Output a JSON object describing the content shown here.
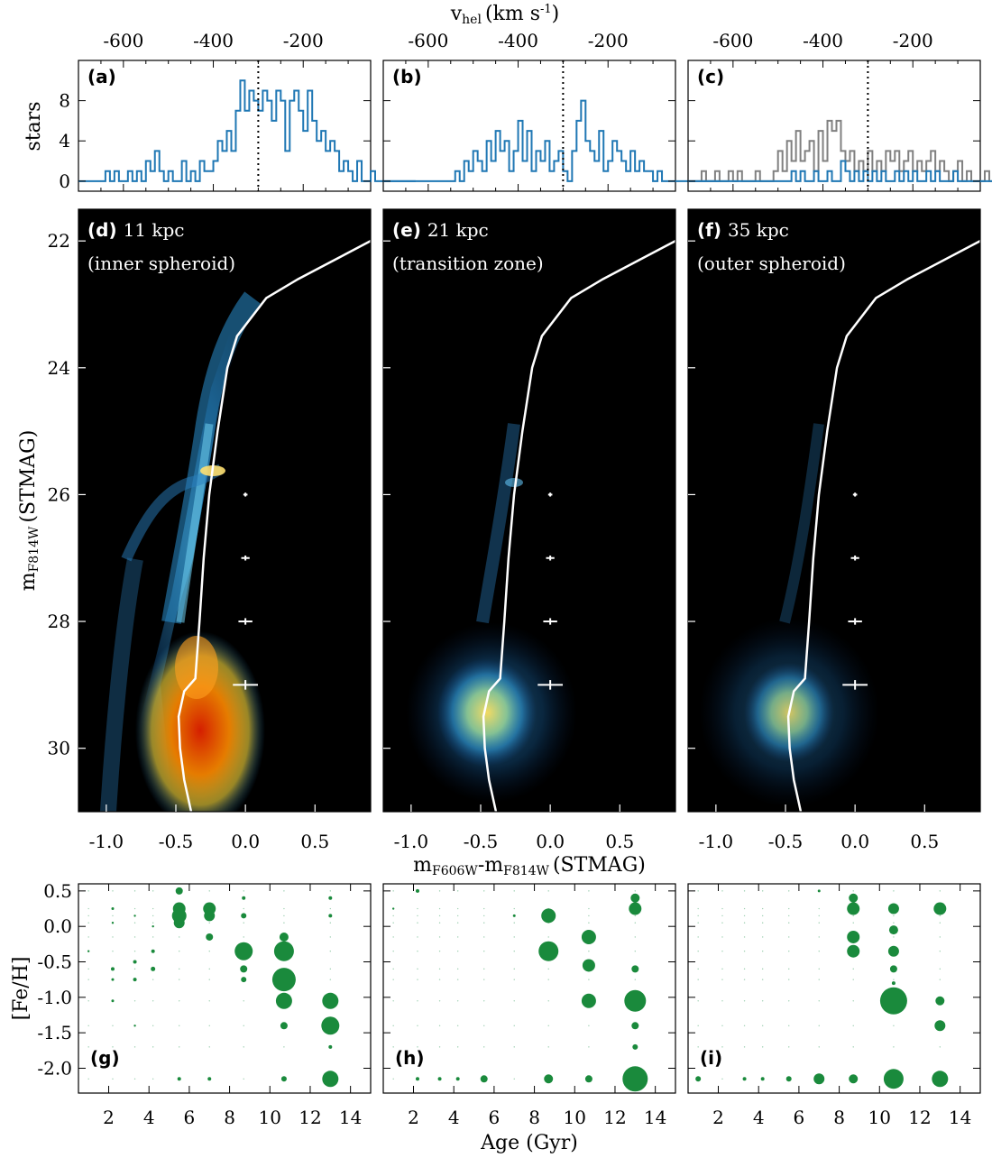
{
  "chart_data": [
    {
      "panel": "a",
      "type": "histogram",
      "label": "(a)",
      "x_axis_label": "v",
      "x_axis_label_sub": "hel",
      "x_axis_label_unit": "(km s",
      "x_axis_label_sup": "-1",
      "x_axis_label_close": ")",
      "y_axis_label": "stars",
      "xlim": [
        -700,
        -50
      ],
      "ylim": [
        -1,
        12
      ],
      "xticks": [
        "-600",
        "-400",
        "-200"
      ],
      "yticks": [
        "0",
        "4",
        "8"
      ],
      "dotted_line_x": -300,
      "bin_start": -700,
      "bin_width": 10,
      "series": [
        {
          "color": "#1f77b4",
          "counts": [
            0,
            0,
            0,
            0,
            0,
            0,
            1,
            0,
            1,
            0,
            0,
            1,
            0,
            1,
            0,
            2,
            1,
            3,
            1,
            0,
            1,
            0,
            0,
            2,
            0,
            1,
            0,
            2,
            1,
            1,
            2,
            4,
            3,
            5,
            3,
            7,
            10,
            7,
            9,
            8,
            7,
            9,
            8,
            6,
            9,
            8,
            3,
            8,
            9,
            7,
            5,
            9,
            6,
            4,
            5,
            3,
            4,
            3,
            1,
            2,
            1,
            0,
            2,
            0,
            0,
            1,
            0,
            0,
            0,
            0,
            0,
            0,
            0,
            0,
            0
          ]
        }
      ]
    },
    {
      "panel": "b",
      "type": "histogram",
      "label": "(b)",
      "xlim": [
        -700,
        -50
      ],
      "ylim": [
        -1,
        12
      ],
      "xticks": [
        "-600",
        "-400",
        "-200"
      ],
      "dotted_line_x": -300,
      "bin_start": -700,
      "bin_width": 10,
      "series": [
        {
          "color": "#1f77b4",
          "counts": [
            0,
            0,
            0,
            0,
            0,
            0,
            0,
            0,
            0,
            0,
            0,
            0,
            0,
            0,
            0,
            0,
            1,
            0,
            2,
            1,
            3,
            2,
            1,
            4,
            2,
            5,
            3,
            4,
            1,
            3,
            6,
            2,
            5,
            1,
            3,
            2,
            4,
            1,
            2,
            3,
            1,
            0,
            3,
            6,
            8,
            4,
            3,
            2,
            5,
            1,
            2,
            4,
            3,
            2,
            1,
            3,
            1,
            2,
            1,
            1,
            0,
            1,
            0,
            0,
            0,
            0,
            0,
            0,
            0,
            0,
            0,
            0,
            0,
            0,
            0
          ]
        }
      ]
    },
    {
      "panel": "c",
      "type": "histogram",
      "label": "(c)",
      "xlim": [
        -700,
        -50
      ],
      "ylim": [
        -1,
        12
      ],
      "xticks": [
        "-600",
        "-400",
        "-200"
      ],
      "dotted_line_x": -300,
      "bin_start": -700,
      "bin_width": 10,
      "series": [
        {
          "color": "#808080",
          "counts": [
            0,
            0,
            0,
            1,
            0,
            0,
            1,
            0,
            0,
            1,
            0,
            1,
            0,
            0,
            0,
            1,
            0,
            0,
            0,
            1,
            3,
            1,
            4,
            2,
            5,
            2,
            3,
            4,
            1,
            5,
            2,
            6,
            5,
            6,
            3,
            2,
            3,
            1,
            2,
            1,
            3,
            1,
            2,
            1,
            3,
            2,
            3,
            1,
            2,
            3,
            1,
            2,
            1,
            2,
            3,
            1,
            2,
            1,
            0,
            1,
            2,
            0,
            1,
            0,
            0,
            0,
            1,
            0,
            0,
            0,
            0,
            0,
            1,
            0,
            0
          ]
        },
        {
          "color": "#1f77b4",
          "counts": [
            0,
            0,
            0,
            0,
            0,
            0,
            0,
            0,
            0,
            0,
            0,
            0,
            0,
            0,
            0,
            0,
            0,
            0,
            0,
            0,
            0,
            0,
            0,
            1,
            0,
            1,
            0,
            0,
            1,
            0,
            0,
            1,
            0,
            0,
            2,
            1,
            0,
            1,
            0,
            1,
            0,
            1,
            0,
            1,
            0,
            0,
            1,
            0,
            1,
            0,
            1,
            0,
            0,
            1,
            0,
            1,
            0,
            0,
            0,
            1,
            0,
            0,
            0,
            0,
            0,
            0,
            0,
            0,
            0,
            0,
            0,
            0,
            0,
            0,
            0
          ]
        }
      ]
    },
    {
      "panel": "d",
      "type": "hess_diagram",
      "label": "(d)",
      "annotation": "11 kpc",
      "annotation2": "(inner spheroid)",
      "xlim": [
        -1.2,
        0.9
      ],
      "ylim": [
        31,
        21.5
      ],
      "xticks": [
        "-1.0",
        "-0.5",
        "0.0",
        "0.5"
      ],
      "yticks": [
        "22",
        "24",
        "26",
        "28",
        "30"
      ],
      "y_axis_label": "m",
      "y_axis_label_sub": "F814W",
      "y_axis_label_unit": "(STMAG)",
      "density_level": 1.0
    },
    {
      "panel": "e",
      "type": "hess_diagram",
      "label": "(e)",
      "annotation": "21 kpc",
      "annotation2": "(transition zone)",
      "xlim": [
        -1.2,
        0.9
      ],
      "ylim": [
        31,
        21.5
      ],
      "xticks": [
        "-1.0",
        "-0.5",
        "0.0",
        "0.5"
      ],
      "x_axis_label": "m",
      "x_axis_label_sub1": "F606W",
      "x_axis_label_mid": "-m",
      "x_axis_label_sub2": "F814W",
      "x_axis_label_unit": "(STMAG)",
      "density_level": 0.55
    },
    {
      "panel": "f",
      "type": "hess_diagram",
      "label": "(f)",
      "annotation": "35 kpc",
      "annotation2": "(outer spheroid)",
      "xlim": [
        -1.2,
        0.9
      ],
      "ylim": [
        31,
        21.5
      ],
      "xticks": [
        "-1.0",
        "-0.5",
        "0.0",
        "0.5"
      ],
      "density_level": 0.4
    },
    {
      "panel": "g",
      "type": "bubble",
      "label": "(g)",
      "y_axis_label": "[Fe/H]",
      "xlim": [
        0.5,
        15
      ],
      "ylim": [
        -2.35,
        0.6
      ],
      "xticks": [
        "2",
        "4",
        "6",
        "8",
        "10",
        "12",
        "14"
      ],
      "yticks": [
        "0.5",
        "0.0",
        "-0.5",
        "-1.0",
        "-1.5",
        "-2.0"
      ],
      "points": [
        [
          5.5,
          0.5,
          4
        ],
        [
          5.5,
          0.25,
          7
        ],
        [
          5.5,
          0.15,
          8
        ],
        [
          5.5,
          0.05,
          6
        ],
        [
          7,
          0.25,
          7
        ],
        [
          7,
          0.15,
          6
        ],
        [
          7,
          -0.15,
          4
        ],
        [
          8.7,
          -0.35,
          10
        ],
        [
          8.7,
          -0.6,
          4
        ],
        [
          8.7,
          -0.75,
          3
        ],
        [
          8.7,
          0.15,
          3
        ],
        [
          8.7,
          0.4,
          2
        ],
        [
          10.7,
          -0.15,
          5
        ],
        [
          10.7,
          -0.35,
          11
        ],
        [
          10.7,
          -0.75,
          13
        ],
        [
          10.7,
          -1.05,
          9
        ],
        [
          10.7,
          -1.4,
          4
        ],
        [
          10.7,
          -2.15,
          3
        ],
        [
          13,
          -1.05,
          9
        ],
        [
          13,
          -1.4,
          10
        ],
        [
          13,
          -2.15,
          9
        ],
        [
          13,
          0.15,
          2
        ],
        [
          13,
          0.4,
          2
        ],
        [
          13,
          -1.7,
          2
        ],
        [
          4.2,
          -0.6,
          2.5
        ],
        [
          4.2,
          -0.35,
          2
        ],
        [
          3.3,
          -0.5,
          2
        ],
        [
          3.3,
          -0.75,
          2
        ],
        [
          2.2,
          -0.6,
          2
        ],
        [
          2.2,
          -0.75,
          1.5
        ],
        [
          2.2,
          0.25,
          1.5
        ],
        [
          2.2,
          -1.05,
          1.5
        ],
        [
          3.3,
          -1.4,
          1.2
        ],
        [
          5.5,
          -2.15,
          2
        ],
        [
          7,
          -2.15,
          2
        ],
        [
          3.3,
          0.15,
          1.2
        ],
        [
          4.2,
          0,
          1.2
        ],
        [
          2.2,
          0.05,
          1.2
        ],
        [
          1,
          -0.35,
          1.2
        ]
      ]
    },
    {
      "panel": "h",
      "type": "bubble",
      "label": "(h)",
      "xlim": [
        0.5,
        15
      ],
      "ylim": [
        -2.35,
        0.6
      ],
      "xticks": [
        "2",
        "4",
        "6",
        "8",
        "10",
        "12",
        "14"
      ],
      "points": [
        [
          8.7,
          0.15,
          8
        ],
        [
          8.7,
          -0.35,
          11
        ],
        [
          10.7,
          -0.15,
          8
        ],
        [
          10.7,
          -0.55,
          7
        ],
        [
          10.7,
          -1.05,
          8
        ],
        [
          10.7,
          -2.15,
          4
        ],
        [
          13,
          0.4,
          5
        ],
        [
          13,
          0.25,
          7
        ],
        [
          13,
          -0.6,
          4
        ],
        [
          13,
          -1.05,
          12
        ],
        [
          13,
          -1.4,
          4
        ],
        [
          13,
          -1.7,
          3
        ],
        [
          13,
          -2.15,
          14
        ],
        [
          8.7,
          -2.15,
          5
        ],
        [
          5.5,
          -2.15,
          4
        ],
        [
          4.2,
          -2.15,
          2
        ],
        [
          3.3,
          -2.15,
          2
        ],
        [
          2.2,
          -2.15,
          2
        ],
        [
          2.2,
          0.5,
          2
        ],
        [
          7,
          0.15,
          1.5
        ],
        [
          1,
          0.25,
          1.2
        ]
      ]
    },
    {
      "panel": "i",
      "type": "bubble",
      "label": "(i)",
      "xlim": [
        0.5,
        15
      ],
      "ylim": [
        -2.35,
        0.6
      ],
      "xticks": [
        "2",
        "4",
        "6",
        "8",
        "10",
        "12",
        "14"
      ],
      "points": [
        [
          8.7,
          0.4,
          5
        ],
        [
          8.7,
          0.25,
          7
        ],
        [
          8.7,
          -0.15,
          7
        ],
        [
          8.7,
          -0.35,
          7
        ],
        [
          10.7,
          0.25,
          6
        ],
        [
          10.7,
          -0.05,
          5
        ],
        [
          10.7,
          -0.35,
          6
        ],
        [
          10.7,
          -0.6,
          4
        ],
        [
          10.7,
          -0.8,
          2
        ],
        [
          10.7,
          -1.05,
          15
        ],
        [
          10.7,
          -2.15,
          11
        ],
        [
          13,
          0.25,
          7
        ],
        [
          13,
          -1.05,
          5
        ],
        [
          13,
          -1.4,
          6
        ],
        [
          13,
          -2.15,
          9
        ],
        [
          8.7,
          -2.15,
          5
        ],
        [
          7,
          -2.15,
          6
        ],
        [
          5.5,
          -2.15,
          3
        ],
        [
          4.2,
          -2.15,
          2
        ],
        [
          3.3,
          -2.15,
          2
        ],
        [
          1,
          -2.15,
          3
        ],
        [
          7,
          0.5,
          1.5
        ]
      ]
    }
  ],
  "x_axis_label_bottom": "Age (Gyr)"
}
